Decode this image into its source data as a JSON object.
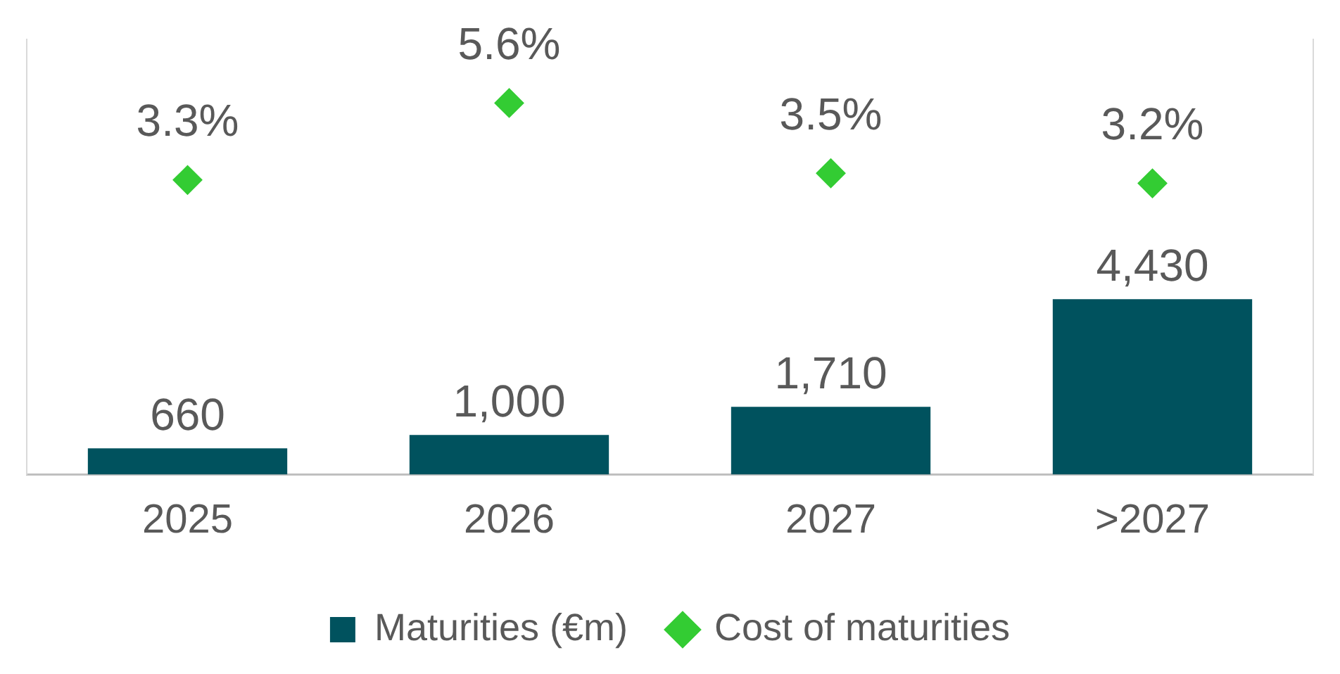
{
  "chart_data": {
    "type": "bar",
    "categories": [
      "2025",
      "2026",
      "2027",
      ">2027"
    ],
    "series": [
      {
        "name": "Maturities (€m)",
        "color": "#00525e",
        "values": [
          660,
          1000,
          1710,
          4430
        ],
        "value_labels": [
          "660",
          "1,000",
          "1,710",
          "4,430"
        ]
      },
      {
        "name": "Cost of maturities",
        "type": "scatter",
        "axis": "y2",
        "color": "#33cc33",
        "marker": "diamond",
        "values": [
          3.3,
          5.6,
          3.5,
          3.2
        ],
        "value_labels": [
          "3.3%",
          "5.6%",
          "3.5%",
          "3.2%"
        ]
      }
    ],
    "ylim": [
      0,
      11000
    ],
    "y2lim": [
      -5.5,
      7.5
    ],
    "tick_labels": "x",
    "grid": false,
    "legend": "bottom"
  }
}
